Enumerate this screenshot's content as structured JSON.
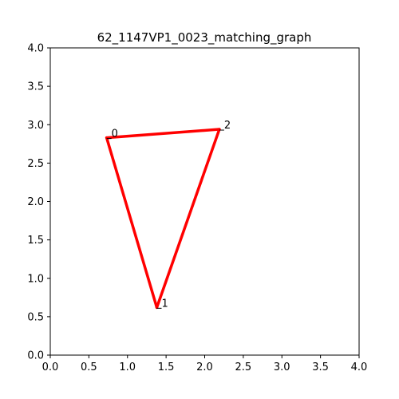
{
  "chart_data": {
    "type": "line",
    "title": "62_1147VP1_0023_matching_graph",
    "xlabel": "",
    "ylabel": "",
    "xlim": [
      0,
      4
    ],
    "ylim": [
      0,
      4
    ],
    "xticks": [
      "0.0",
      "0.5",
      "1.0",
      "1.5",
      "2.0",
      "2.5",
      "3.0",
      "3.5",
      "4.0"
    ],
    "yticks": [
      "0.0",
      "0.5",
      "1.0",
      "1.5",
      "2.0",
      "2.5",
      "3.0",
      "3.5",
      "4.0"
    ],
    "grid": false,
    "edge_color": "#ff0000",
    "nodes": [
      {
        "label": "0",
        "x": 0.73,
        "y": 2.83
      },
      {
        "label": "1",
        "x": 1.38,
        "y": 0.62
      },
      {
        "label": "2",
        "x": 2.19,
        "y": 2.94
      }
    ],
    "edges": [
      {
        "from": 0,
        "to": 1
      },
      {
        "from": 1,
        "to": 2
      },
      {
        "from": 2,
        "to": 0
      }
    ]
  }
}
